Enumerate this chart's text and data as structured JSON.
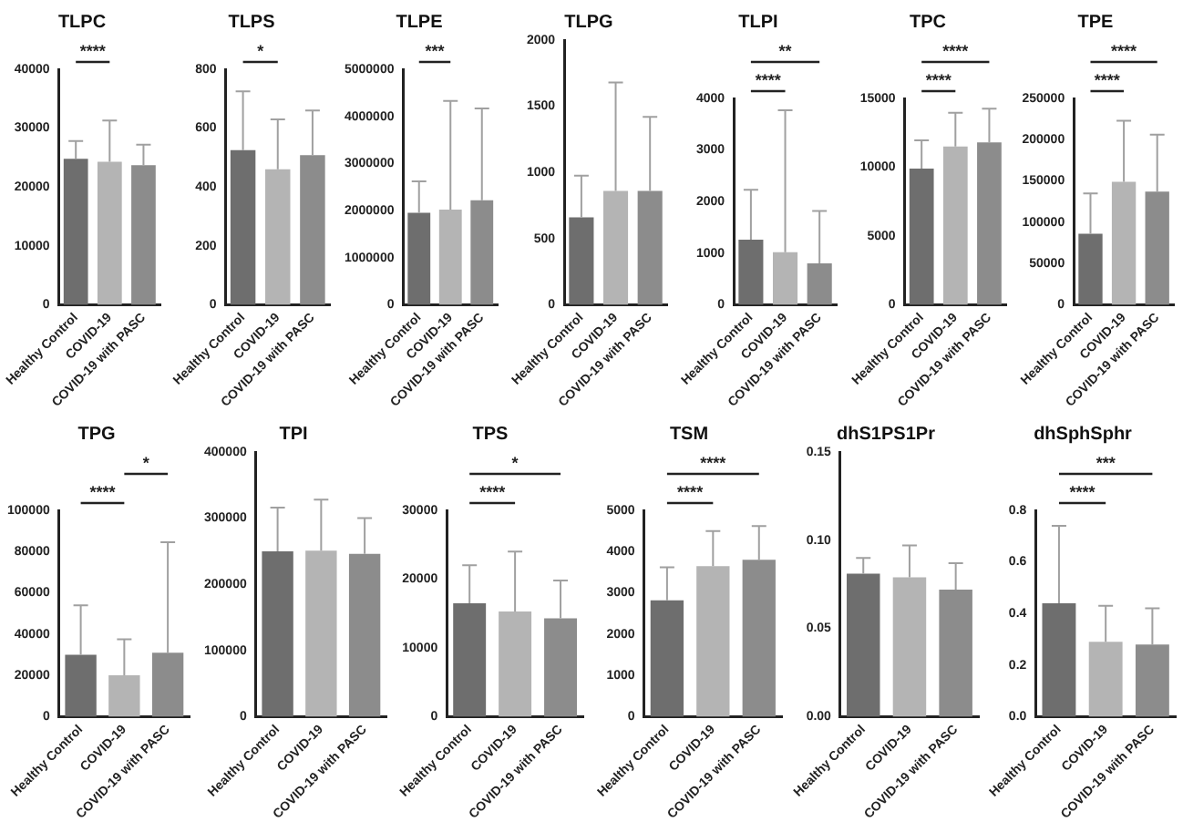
{
  "chart_data": [
    {
      "type": "bar",
      "title": "TLPC",
      "categories": [
        "Healthy Control",
        "COVID-19",
        "COVID-19 with PASC"
      ],
      "values": [
        24800,
        24300,
        23700
      ],
      "colors": [
        "#6e6e6e",
        "#b4b4b4",
        "#8c8c8c"
      ],
      "errors": [
        [
          24800,
          27800
        ],
        [
          24300,
          31300
        ],
        [
          23700,
          27200
        ]
      ],
      "ylim": [
        0,
        40000
      ],
      "yticks": [
        0,
        10000,
        20000,
        30000,
        40000
      ],
      "annotations": [
        "****"
      ]
    },
    {
      "type": "bar",
      "title": "TLPS",
      "categories": [
        "Healthy Control",
        "COVID-19",
        "COVID-19 with PASC"
      ],
      "values": [
        525,
        460,
        508
      ],
      "colors": [
        "#6e6e6e",
        "#b4b4b4",
        "#8c8c8c"
      ],
      "errors": [
        [
          525,
          725
        ],
        [
          460,
          630
        ],
        [
          508,
          660
        ]
      ],
      "ylim": [
        0,
        800
      ],
      "yticks": [
        0,
        200,
        400,
        600,
        800
      ],
      "annotations": [
        "*"
      ]
    },
    {
      "type": "bar",
      "title": "TLPE",
      "categories": [
        "Healthy Control",
        "COVID-19",
        "COVID-19 with PASC"
      ],
      "values": [
        1950000,
        2020000,
        2220000
      ],
      "colors": [
        "#6e6e6e",
        "#b4b4b4",
        "#8c8c8c"
      ],
      "errors": [
        [
          1950000,
          2620000
        ],
        [
          2020000,
          4330000
        ],
        [
          2220000,
          4170000
        ]
      ],
      "ylim": [
        0,
        5000000
      ],
      "yticks": [
        0,
        1000000,
        2000000,
        3000000,
        4000000,
        5000000
      ],
      "annotations": [
        "***"
      ]
    },
    {
      "type": "bar",
      "title": "TLPG",
      "categories": [
        "Healthy Control",
        "COVID-19",
        "COVID-19 with PASC"
      ],
      "values": [
        660,
        860,
        860
      ],
      "colors": [
        "#6e6e6e",
        "#b4b4b4",
        "#8c8c8c"
      ],
      "errors": [
        [
          660,
          975
        ],
        [
          860,
          1680
        ],
        [
          860,
          1420
        ]
      ],
      "ylim": [
        0,
        2000
      ],
      "yticks": [
        0,
        500,
        1000,
        1500,
        2000
      ]
    },
    {
      "type": "bar",
      "title": "TLPI",
      "categories": [
        "Healthy Control",
        "COVID-19",
        "COVID-19 with PASC"
      ],
      "values": [
        1260,
        1020,
        800
      ],
      "colors": [
        "#6e6e6e",
        "#b4b4b4",
        "#8c8c8c"
      ],
      "errors": [
        [
          1260,
          2230
        ],
        [
          1020,
          3770
        ],
        [
          800,
          1820
        ]
      ],
      "ylim": [
        0,
        4000
      ],
      "yticks": [
        0,
        1000,
        2000,
        3000,
        4000
      ],
      "annotations": [
        "****",
        "**"
      ]
    },
    {
      "type": "bar",
      "title": "TPC",
      "categories": [
        "Healthy Control",
        "COVID-19",
        "COVID-19 with PASC"
      ],
      "values": [
        9900,
        11500,
        11800
      ],
      "colors": [
        "#6e6e6e",
        "#b4b4b4",
        "#8c8c8c"
      ],
      "errors": [
        [
          9900,
          11950
        ],
        [
          11500,
          13950
        ],
        [
          11800,
          14250
        ]
      ],
      "ylim": [
        0,
        15000
      ],
      "yticks": [
        0,
        5000,
        10000,
        15000
      ],
      "annotations": [
        "****",
        "****"
      ]
    },
    {
      "type": "bar",
      "title": "TPE",
      "categories": [
        "Healthy Control",
        "COVID-19",
        "COVID-19 with PASC"
      ],
      "values": [
        86000,
        149000,
        137000
      ],
      "colors": [
        "#6e6e6e",
        "#b4b4b4",
        "#8c8c8c"
      ],
      "errors": [
        [
          86000,
          135000
        ],
        [
          149000,
          223000
        ],
        [
          137000,
          206000
        ]
      ],
      "ylim": [
        0,
        250000
      ],
      "yticks": [
        0,
        50000,
        100000,
        150000,
        200000,
        250000
      ],
      "annotations": [
        "****",
        "****"
      ]
    },
    {
      "type": "bar",
      "title": "TPG",
      "categories": [
        "Healthy Control",
        "COVID-19",
        "COVID-19 with PASC"
      ],
      "values": [
        30000,
        20000,
        31000
      ],
      "colors": [
        "#6e6e6e",
        "#b4b4b4",
        "#8c8c8c"
      ],
      "errors": [
        [
          30000,
          54000
        ],
        [
          20000,
          37500
        ],
        [
          31000,
          84500
        ]
      ],
      "ylim": [
        0,
        100000
      ],
      "yticks": [
        0,
        20000,
        40000,
        60000,
        80000,
        100000
      ],
      "annotations": [
        "****",
        "*"
      ]
    },
    {
      "type": "bar",
      "title": "TPI",
      "categories": [
        "Healthy Control",
        "COVID-19",
        "COVID-19 with PASC"
      ],
      "values": [
        250000,
        251000,
        246000
      ],
      "colors": [
        "#6e6e6e",
        "#b4b4b4",
        "#8c8c8c"
      ],
      "errors": [
        [
          250000,
          316000
        ],
        [
          251000,
          328000
        ],
        [
          246000,
          300000
        ]
      ],
      "ylim": [
        0,
        400000
      ],
      "yticks": [
        0,
        100000,
        200000,
        300000,
        400000
      ]
    },
    {
      "type": "bar",
      "title": "TPS",
      "categories": [
        "Healthy Control",
        "COVID-19",
        "COVID-19 with PASC"
      ],
      "values": [
        16500,
        15300,
        14300
      ],
      "colors": [
        "#6e6e6e",
        "#b4b4b4",
        "#8c8c8c"
      ],
      "errors": [
        [
          16500,
          22000
        ],
        [
          15300,
          24000
        ],
        [
          14300,
          19800
        ]
      ],
      "ylim": [
        0,
        30000
      ],
      "yticks": [
        0,
        10000,
        20000,
        30000
      ],
      "annotations": [
        "****",
        "*"
      ]
    },
    {
      "type": "bar",
      "title": "TSM",
      "categories": [
        "Healthy Control",
        "COVID-19",
        "COVID-19 with PASC"
      ],
      "values": [
        2820,
        3650,
        3800
      ],
      "colors": [
        "#6e6e6e",
        "#b4b4b4",
        "#8c8c8c"
      ],
      "errors": [
        [
          2820,
          3620
        ],
        [
          3650,
          4500
        ],
        [
          3800,
          4620
        ]
      ],
      "ylim": [
        0,
        5000
      ],
      "yticks": [
        0,
        1000,
        2000,
        3000,
        4000,
        5000
      ],
      "annotations": [
        "****",
        "****"
      ]
    },
    {
      "type": "bar",
      "title": "dhS1PS1Pr",
      "categories": [
        "Healthy Control",
        "COVID-19",
        "COVID-19 with PASC"
      ],
      "values": [
        0.081,
        0.079,
        0.072
      ],
      "colors": [
        "#6e6e6e",
        "#b4b4b4",
        "#8c8c8c"
      ],
      "errors": [
        [
          0.081,
          0.09
        ],
        [
          0.079,
          0.097
        ],
        [
          0.072,
          0.087
        ]
      ],
      "ylim": [
        0,
        0.15
      ],
      "yticks": [
        {
          "value": 0,
          "label": "0.00"
        },
        {
          "value": 0.05,
          "label": "0.05"
        },
        {
          "value": 0.1,
          "label": "0.10"
        },
        {
          "value": 0.15,
          "label": "0.15"
        }
      ]
    },
    {
      "type": "bar",
      "title": "dhSphSphr",
      "categories": [
        "Healthy Control",
        "COVID-19",
        "COVID-19 with PASC"
      ],
      "values": [
        0.44,
        0.29,
        0.28
      ],
      "colors": [
        "#6e6e6e",
        "#b4b4b4",
        "#8c8c8c"
      ],
      "errors": [
        [
          0.44,
          0.74
        ],
        [
          0.29,
          0.43
        ],
        [
          0.28,
          0.42
        ]
      ],
      "ylim": [
        0,
        0.8
      ],
      "yticks": [
        {
          "value": 0,
          "label": "0.0"
        },
        {
          "value": 0.2,
          "label": "0.2"
        },
        {
          "value": 0.4,
          "label": "0.4"
        },
        {
          "value": 0.6,
          "label": "0.6"
        },
        {
          "value": 0.8,
          "label": "0.8"
        }
      ],
      "annotations": [
        "****",
        "***"
      ]
    }
  ]
}
